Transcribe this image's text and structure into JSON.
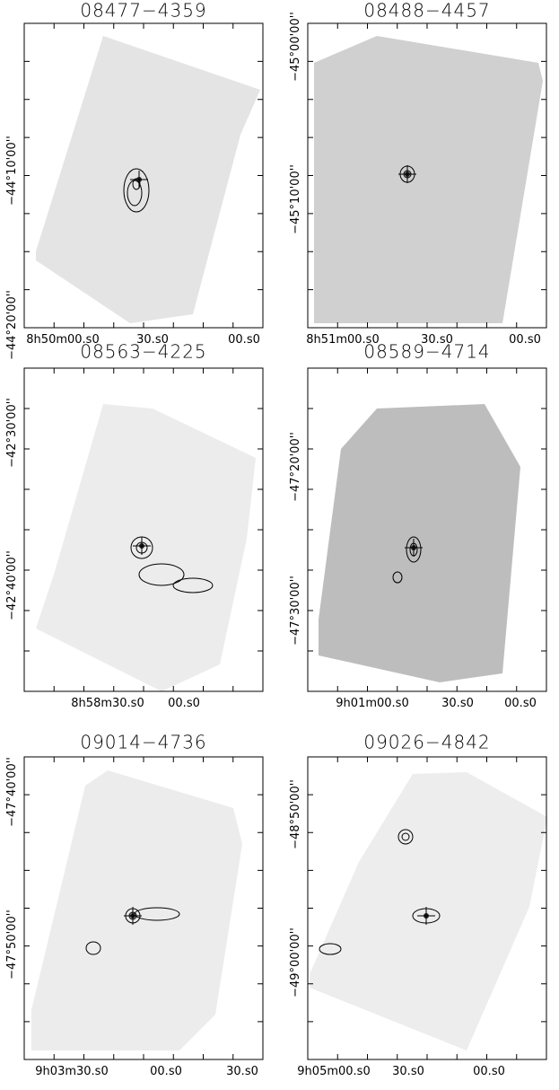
{
  "panels": [
    {
      "title": "08477−4359",
      "yticks": [
        "−44°10'00''",
        "−44°20'00''"
      ],
      "xticks": [
        "8h50m00.s0",
        "30.s0",
        "00.s0"
      ]
    },
    {
      "title": "08488−4457",
      "yticks": [
        "−45°00'00''",
        "−45°10'00''"
      ],
      "xticks": [
        "8h51m00.s0",
        "30.s0",
        "00.s0"
      ]
    },
    {
      "title": "08563−4225",
      "yticks": [
        "−42°30'00''",
        "−42°40'00''"
      ],
      "xticks": [
        "8h58m30.s0",
        "00.s0"
      ]
    },
    {
      "title": "08589−4714",
      "yticks": [
        "−47°20'00''",
        "−47°30'00''"
      ],
      "xticks": [
        "9h01m00.s0",
        "30.s0",
        "00.s0"
      ]
    },
    {
      "title": "09014−4736",
      "yticks": [
        "−47°40'00''",
        "−47°50'00''"
      ],
      "xticks": [
        "9h03m30.s0",
        "00.s0",
        "30.s0"
      ]
    },
    {
      "title": "09026−4842",
      "yticks": [
        "−48°50'00''",
        "−49°00'00''"
      ],
      "xticks": [
        "9h05m00.s0",
        "30.s0",
        "00.s0"
      ]
    }
  ]
}
